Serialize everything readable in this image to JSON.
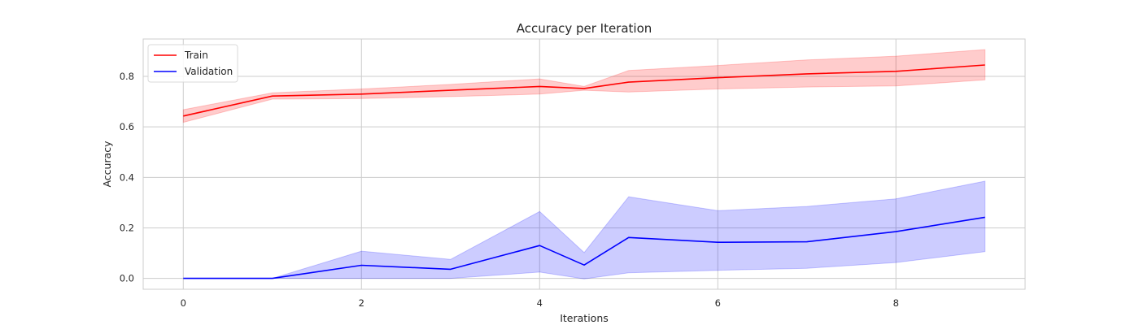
{
  "chart_data": {
    "type": "line",
    "title": "Accuracy per Iteration",
    "xlabel": "Iterations",
    "ylabel": "Accuracy",
    "xlim": [
      -0.45,
      9.45
    ],
    "ylim": [
      -0.043,
      0.948
    ],
    "x_ticks": [
      0,
      2,
      4,
      6,
      8
    ],
    "y_ticks": [
      0.0,
      0.2,
      0.4,
      0.6,
      0.8
    ],
    "grid": true,
    "legend_position": "top-left",
    "x": [
      0,
      1,
      2,
      3,
      4,
      4.5,
      5,
      6,
      7,
      8,
      9
    ],
    "series": [
      {
        "name": "Train",
        "color": "#ff0000",
        "values": [
          0.643,
          0.722,
          0.73,
          0.745,
          0.76,
          0.752,
          0.777,
          0.795,
          0.81,
          0.82,
          0.845
        ],
        "lower": [
          0.618,
          0.71,
          0.712,
          0.72,
          0.73,
          0.745,
          0.738,
          0.75,
          0.758,
          0.762,
          0.786
        ],
        "upper": [
          0.668,
          0.735,
          0.75,
          0.768,
          0.79,
          0.76,
          0.823,
          0.843,
          0.865,
          0.88,
          0.906
        ]
      },
      {
        "name": "Validation",
        "color": "#0000ff",
        "values": [
          0.0,
          0.0,
          0.052,
          0.036,
          0.13,
          0.053,
          0.162,
          0.143,
          0.145,
          0.185,
          0.242
        ],
        "lower": [
          0.0,
          0.0,
          0.0,
          0.0,
          0.025,
          -0.002,
          0.022,
          0.032,
          0.04,
          0.063,
          0.106
        ],
        "upper": [
          0.0,
          0.0,
          0.108,
          0.075,
          0.265,
          0.102,
          0.323,
          0.268,
          0.285,
          0.315,
          0.385
        ]
      }
    ]
  }
}
